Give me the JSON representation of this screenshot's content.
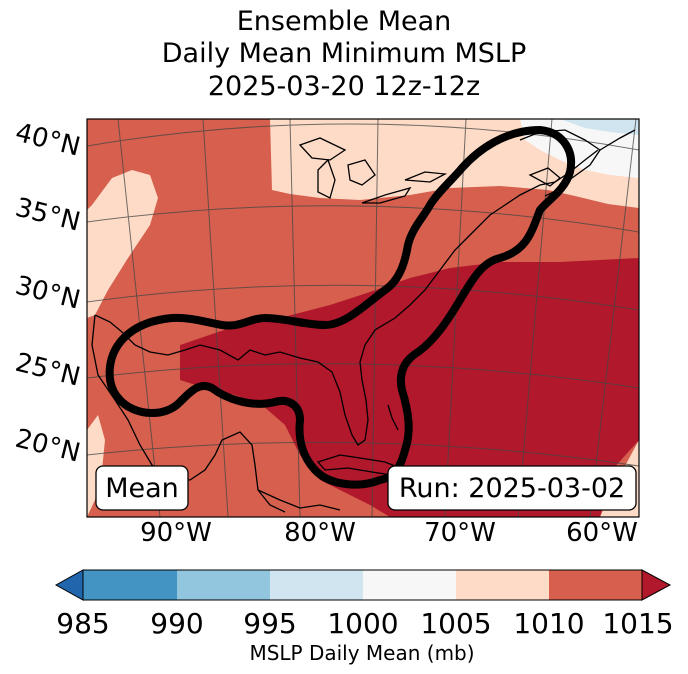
{
  "title": {
    "line1": "Ensemble Mean",
    "line2": "Daily Mean Minimum MSLP",
    "line3": "2025-03-20 12z-12z"
  },
  "map": {
    "lat_labels": [
      "40°N",
      "35°N",
      "30°N",
      "25°N",
      "20°N"
    ],
    "lon_labels": [
      "90°W",
      "80°W",
      "70°W",
      "60°W"
    ],
    "mean_label": "Mean",
    "run_label": "Run: 2025-03-02"
  },
  "colorbar": {
    "ticks": [
      "985",
      "990",
      "995",
      "1000",
      "1005",
      "1010",
      "1015"
    ],
    "label": "MSLP Daily Mean (mb)",
    "colors": [
      "#2166ac",
      "#4393c3",
      "#92c5de",
      "#d1e5f0",
      "#f7f7f7",
      "#fddbc7",
      "#d6604d",
      "#b2182b"
    ]
  }
}
